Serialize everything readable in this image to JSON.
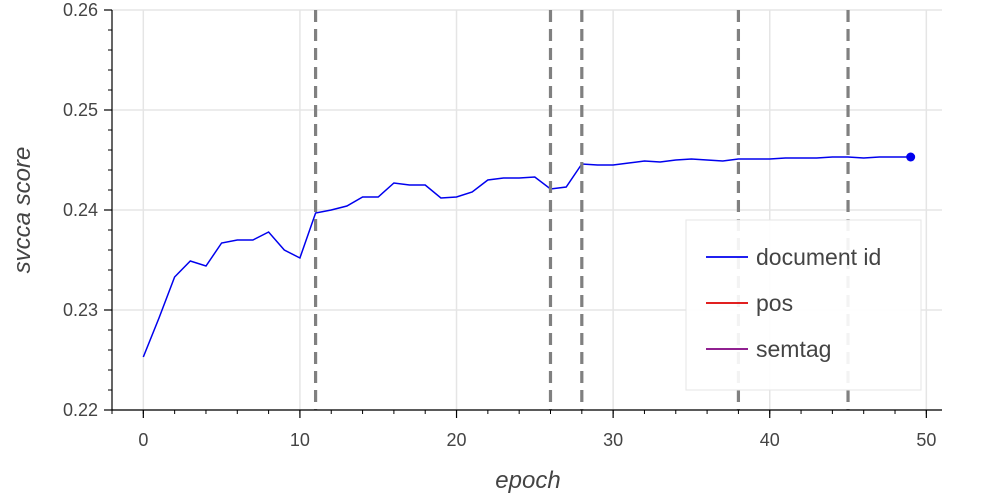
{
  "chart_data": {
    "type": "line",
    "title": "",
    "xlabel": "epoch",
    "ylabel": "svcca score",
    "xlim": [
      -2,
      51
    ],
    "ylim": [
      0.22,
      0.26
    ],
    "x_ticks": [
      0,
      10,
      20,
      30,
      40,
      50
    ],
    "x_tick_labels": [
      "0",
      "10",
      "20",
      "30",
      "40",
      "50"
    ],
    "y_ticks": [
      0.22,
      0.23,
      0.24,
      0.25,
      0.26
    ],
    "y_tick_labels": [
      "0.22",
      "0.23",
      "0.24",
      "0.25",
      "0.26"
    ],
    "grid": true,
    "vertical_dashed_lines": [
      11,
      26,
      28,
      38,
      45
    ],
    "series": [
      {
        "name": "document id",
        "color": "#0000ee",
        "x": [
          0,
          1,
          2,
          3,
          4,
          5,
          6,
          7,
          8,
          9,
          10,
          11,
          12,
          13,
          14,
          15,
          16,
          17,
          18,
          19,
          20,
          21,
          22,
          23,
          24,
          25,
          26,
          27,
          28,
          29,
          30,
          31,
          32,
          33,
          34,
          35,
          36,
          37,
          38,
          39,
          40,
          41,
          42,
          43,
          44,
          45,
          46,
          47,
          48,
          49
        ],
        "values": [
          0.2253,
          0.2292,
          0.2333,
          0.2349,
          0.2344,
          0.2367,
          0.237,
          0.237,
          0.2378,
          0.236,
          0.2352,
          0.2397,
          0.24,
          0.2404,
          0.2413,
          0.2413,
          0.2427,
          0.2425,
          0.2425,
          0.2412,
          0.2413,
          0.2418,
          0.243,
          0.2432,
          0.2432,
          0.2433,
          0.2421,
          0.2423,
          0.2446,
          0.2445,
          0.2445,
          0.2447,
          0.2449,
          0.2448,
          0.245,
          0.2451,
          0.245,
          0.2449,
          0.2451,
          0.2451,
          0.2451,
          0.2452,
          0.2452,
          0.2452,
          0.2453,
          0.2453,
          0.2452,
          0.2453,
          0.2453,
          0.2453
        ],
        "last_point_marker": true
      },
      {
        "name": "pos",
        "color": "#dd0000",
        "x": [],
        "values": []
      },
      {
        "name": "semtag",
        "color": "#800080",
        "x": [],
        "values": []
      }
    ],
    "legend": {
      "placement": "center-right",
      "entries": [
        "document id",
        "pos",
        "semtag"
      ]
    }
  }
}
